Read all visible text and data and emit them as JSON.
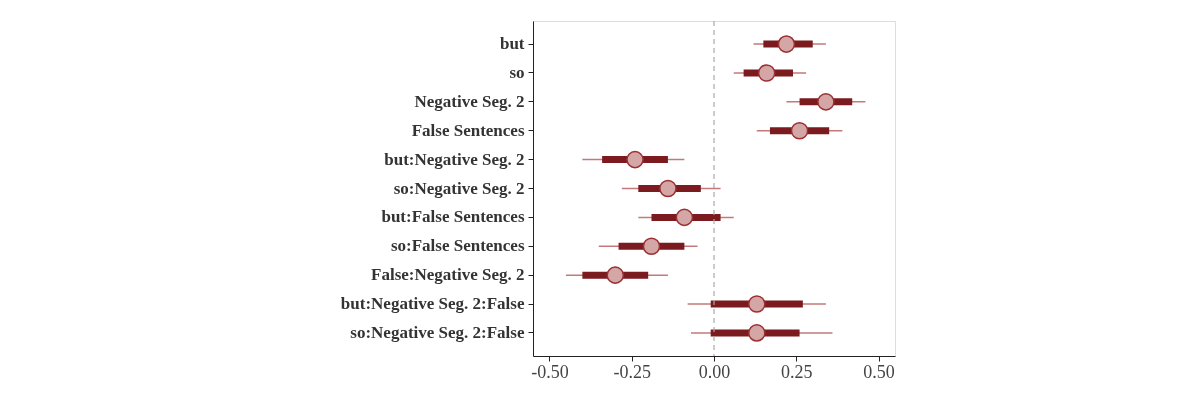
{
  "chart_data": {
    "type": "bar",
    "orientation": "horizontal",
    "categories": [
      "but",
      "so",
      "Negative Seg. 2",
      "False Sentences",
      "but:Negative Seg. 2",
      "so:Negative Seg. 2",
      "but:False Sentences",
      "so:False Sentences",
      "False:Negative Seg. 2",
      "but:Negative Seg. 2:False",
      "so:Negative Seg. 2:False"
    ],
    "series": [
      {
        "color": "#7b1a1f",
        "base": [
          0.15,
          0.09,
          0.26,
          0.17,
          -0.34,
          -0.23,
          -0.19,
          -0.29,
          -0.4,
          -0.01,
          -0.01
        ],
        "values": [
          0.15,
          0.15,
          0.16,
          0.18,
          0.2,
          0.19,
          0.21,
          0.2,
          0.2,
          0.28,
          0.27
        ]
      },
      {
        "type": "scatter",
        "color": "#d4a6a6",
        "values": [
          0.22,
          0.16,
          0.34,
          0.26,
          -0.24,
          -0.14,
          -0.09,
          -0.19,
          -0.3,
          0.13,
          0.13
        ],
        "errors": [
          [
            0.12,
            0.34
          ],
          [
            0.06,
            0.28
          ],
          [
            0.22,
            0.46
          ],
          [
            0.13,
            0.39
          ],
          [
            -0.4,
            -0.09
          ],
          [
            -0.28,
            0.02
          ],
          [
            -0.23,
            0.06
          ],
          [
            -0.35,
            -0.05
          ],
          [
            -0.45,
            -0.14
          ],
          [
            -0.08,
            0.34
          ],
          [
            -0.07,
            0.36
          ]
        ]
      }
    ],
    "xlim": [
      -0.55,
      0.55
    ],
    "xticks": [
      {
        "value": -0.5,
        "label": "-0.50"
      },
      {
        "value": -0.25,
        "label": "-0.25"
      },
      {
        "value": 0,
        "label": "0.00"
      },
      {
        "value": 0.25,
        "label": "0.25"
      },
      {
        "value": 0.5,
        "label": "0.50"
      }
    ],
    "ref_lines": [
      {
        "axis": "x",
        "value": 0,
        "color": "#aaaaaa",
        "line_style": "dashed"
      }
    ],
    "marker": "circle",
    "grid": false
  }
}
